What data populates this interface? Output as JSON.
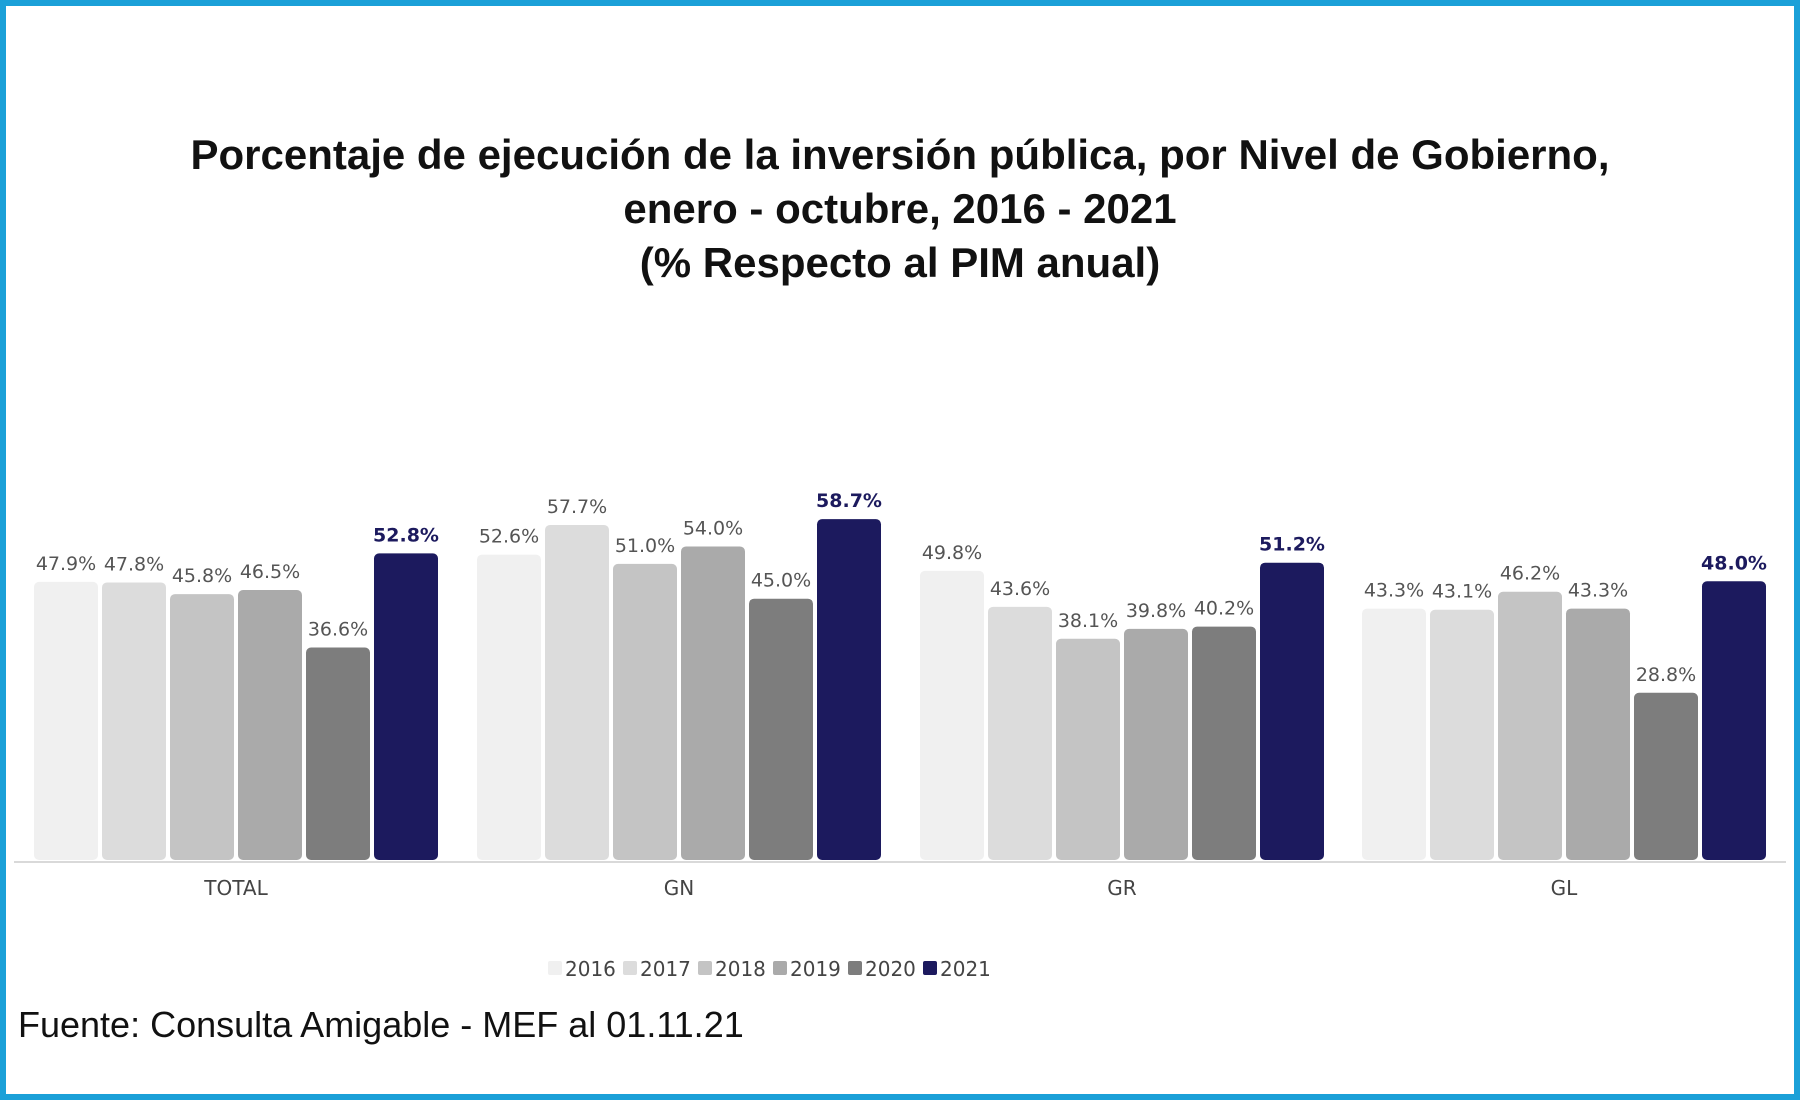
{
  "chart_data": {
    "type": "bar",
    "title": "Porcentaje de ejecución de la inversión pública, por Nivel de Gobierno,",
    "subtitle": "enero - octubre, 2016 - 2021",
    "subtitle2": "(% Respecto al PIM anual)",
    "categories": [
      "TOTAL",
      "GN",
      "GR",
      "GL"
    ],
    "series": [
      {
        "name": "2016",
        "color": "#f0f0f0",
        "values": [
          47.9,
          52.6,
          49.8,
          43.3
        ],
        "labels": [
          "47.9%",
          "52.6%",
          "49.8%",
          "43.3%"
        ]
      },
      {
        "name": "2017",
        "color": "#dcdcdc",
        "values": [
          47.8,
          57.7,
          43.6,
          43.1
        ],
        "labels": [
          "47.8%",
          "57.7%",
          "43.6%",
          "43.1%"
        ]
      },
      {
        "name": "2018",
        "color": "#c4c4c4",
        "values": [
          45.8,
          51.0,
          38.1,
          46.2
        ],
        "labels": [
          "45.8%",
          "51.0%",
          "38.1%",
          "46.2%"
        ]
      },
      {
        "name": "2019",
        "color": "#aaaaaa",
        "values": [
          46.5,
          54.0,
          39.8,
          43.3
        ],
        "labels": [
          "46.5%",
          "54.0%",
          "39.8%",
          "43.3%"
        ]
      },
      {
        "name": "2020",
        "color": "#7d7d7d",
        "values": [
          36.6,
          45.0,
          40.2,
          28.8
        ],
        "labels": [
          "36.6%",
          "45.0%",
          "40.2%",
          "28.8%"
        ]
      },
      {
        "name": "2021",
        "color": "#1c1a5e",
        "values": [
          52.8,
          58.7,
          51.2,
          48.0
        ],
        "labels": [
          "52.8%",
          "58.7%",
          "51.2%",
          "48.0%"
        ],
        "highlight": true
      }
    ],
    "ylim": [
      0,
      62
    ],
    "xlabel": "",
    "ylabel": "",
    "grid": false,
    "legend": "bottom-center"
  },
  "source": "Fuente: Consulta Amigable - MEF al 01.11.21",
  "colors": {
    "border": "#1ba0d8",
    "highlight": "#1c1a5e"
  }
}
